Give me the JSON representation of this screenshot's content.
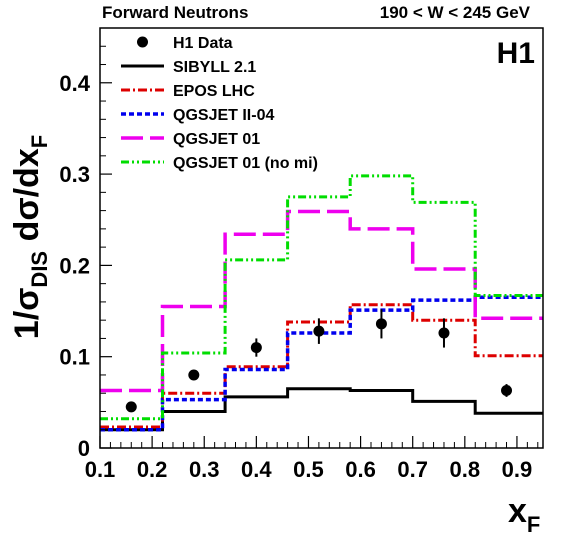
{
  "chart_data": {
    "type": "step",
    "header_left": "Forward Neutrons",
    "header_right": "190 < W < 245 GeV",
    "logo": "H1",
    "xlabel_main": "x",
    "xlabel_sub": "F",
    "ylabel": {
      "p1": "1/σ",
      "p1sub": "DIS",
      "p2": " dσ/dx",
      "p2sub": "F"
    },
    "xlim": [
      0.1,
      0.95
    ],
    "ylim": [
      0,
      0.46
    ],
    "xticks": [
      0.1,
      0.2,
      0.3,
      0.4,
      0.5,
      0.6,
      0.7,
      0.8,
      0.9
    ],
    "yticks": [
      0,
      0.1,
      0.2,
      0.3,
      0.4
    ],
    "bin_edges": [
      0.1,
      0.22,
      0.34,
      0.46,
      0.58,
      0.7,
      0.82,
      0.95
    ],
    "data": {
      "name": "H1 Data",
      "x": [
        0.16,
        0.28,
        0.4,
        0.52,
        0.64,
        0.76,
        0.88
      ],
      "y": [
        0.045,
        0.08,
        0.11,
        0.128,
        0.136,
        0.126,
        0.063
      ],
      "err": [
        0.003,
        0.005,
        0.01,
        0.014,
        0.016,
        0.016,
        0.007
      ]
    },
    "series": [
      {
        "name": "SIBYLL 2.1",
        "color": "#000000",
        "dash": "",
        "width": 3,
        "values": [
          0.02,
          0.04,
          0.056,
          0.065,
          0.063,
          0.051,
          0.038
        ]
      },
      {
        "name": "EPOS LHC",
        "color": "#dd0000",
        "dash": "9 3 2 3",
        "width": 3,
        "values": [
          0.023,
          0.06,
          0.089,
          0.138,
          0.157,
          0.14,
          0.101
        ]
      },
      {
        "name": "QGSJET II-04",
        "color": "#0000ee",
        "dash": "5 3",
        "width": 3.5,
        "values": [
          0.02,
          0.053,
          0.086,
          0.126,
          0.151,
          0.162,
          0.165
        ]
      },
      {
        "name": "QGSJET 01",
        "color": "#ee00ee",
        "dash": "22 7",
        "width": 3.5,
        "values": [
          0.063,
          0.155,
          0.234,
          0.259,
          0.24,
          0.196,
          0.142
        ]
      },
      {
        "name": "QGSJET 01 (no mi)",
        "color": "#00dd00",
        "dash": "8 3 2 3 2 3",
        "width": 3,
        "values": [
          0.032,
          0.104,
          0.206,
          0.275,
          0.298,
          0.269,
          0.167
        ]
      }
    ]
  }
}
